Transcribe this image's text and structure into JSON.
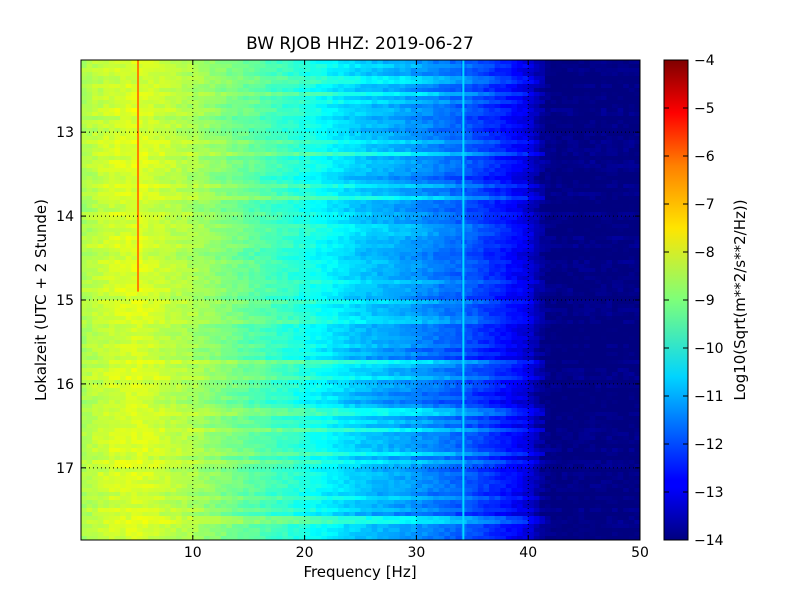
{
  "chart_data": {
    "type": "heatmap",
    "title": "BW RJOB HHZ: 2019-06-27",
    "xlabel": "Frequency [Hz]",
    "ylabel": "Lokalzeit (UTC + 2 Stunde)",
    "xlim": [
      0,
      50
    ],
    "ylim": [
      17.86,
      12.14
    ],
    "x_ticks": [
      10,
      20,
      30,
      40,
      50
    ],
    "y_ticks": [
      13,
      14,
      15,
      16,
      17
    ],
    "grid": true,
    "colormap": "jet",
    "colorbar": {
      "label": "Log10(Sqrt(m**2/s**2/Hz))",
      "range": [
        -14,
        -4
      ],
      "ticks": [
        -4,
        -5,
        -6,
        -7,
        -8,
        -9,
        -10,
        -11,
        -12,
        -13,
        -14
      ]
    },
    "spectrum_profile": {
      "frequency_hz": [
        0,
        2,
        5,
        10,
        15,
        20,
        25,
        30,
        35,
        38,
        40,
        41,
        42,
        50
      ],
      "log_value": [
        -8.6,
        -8.3,
        -8.1,
        -8.6,
        -9.3,
        -10.0,
        -10.8,
        -11.3,
        -12.0,
        -12.6,
        -13.1,
        -13.7,
        -14,
        -14
      ]
    },
    "features": [
      {
        "name": "narrow line",
        "frequency_hz": 5.1,
        "time_range": [
          12.14,
          14.9
        ],
        "log_value": -6.5
      },
      {
        "name": "narrow line",
        "frequency_hz": 34.2,
        "time_range": [
          12.14,
          17.86
        ],
        "log_value": -10.6
      }
    ]
  }
}
